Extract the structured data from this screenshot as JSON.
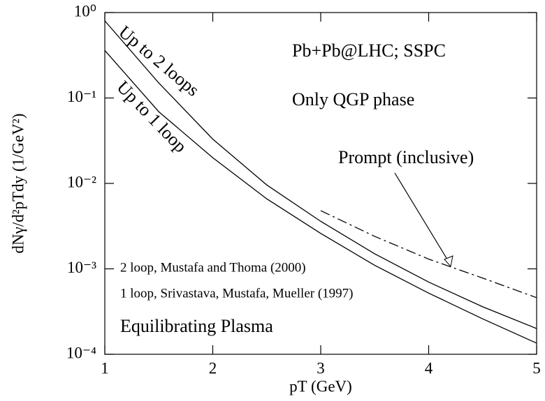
{
  "chart_data": {
    "type": "line",
    "x_label": "pT (GeV)",
    "y_label": "dNγ/d²pTdy (1/GeV²)",
    "xlim": [
      1,
      5
    ],
    "xticks": [
      1,
      2,
      3,
      4,
      5
    ],
    "ylim": [
      0.0001,
      1
    ],
    "yticks": [
      {
        "value": 1,
        "label": "10⁰"
      },
      {
        "value": 0.1,
        "label": "10⁻¹"
      },
      {
        "value": 0.01,
        "label": "10⁻²"
      },
      {
        "value": 0.001,
        "label": "10⁻³"
      },
      {
        "value": 0.0001,
        "label": "10⁻⁴"
      }
    ],
    "log_y": true,
    "series": [
      {
        "name": "Up to 2 loops",
        "color": "#000000",
        "dash": false,
        "x": [
          1,
          1.5,
          2,
          2.5,
          3,
          3.5,
          4,
          4.5,
          5
        ],
        "values": [
          0.8,
          0.15,
          0.033,
          0.0096,
          0.0036,
          0.0015,
          0.0007,
          0.00036,
          0.0002
        ]
      },
      {
        "name": "Up to 1 loop",
        "color": "#000000",
        "dash": false,
        "x": [
          1,
          1.5,
          2,
          2.5,
          3,
          3.5,
          4,
          4.5,
          5
        ],
        "values": [
          0.36,
          0.069,
          0.02,
          0.0066,
          0.0026,
          0.0011,
          0.00052,
          0.00026,
          0.000135
        ]
      },
      {
        "name": "Prompt (inclusive)",
        "color": "#000000",
        "dash": true,
        "x": [
          3,
          3.5,
          4,
          4.5,
          5
        ],
        "values": [
          0.0048,
          0.0024,
          0.0013,
          0.00078,
          0.00046
        ]
      }
    ],
    "annotations": [
      "Pb+Pb@LHC; SSPC",
      "Only QGP phase",
      "2 loop, Mustafa and Thoma (2000)",
      "1 loop, Srivastava, Mustafa, Mueller (1997)",
      "Equilibrating Plasma"
    ]
  }
}
